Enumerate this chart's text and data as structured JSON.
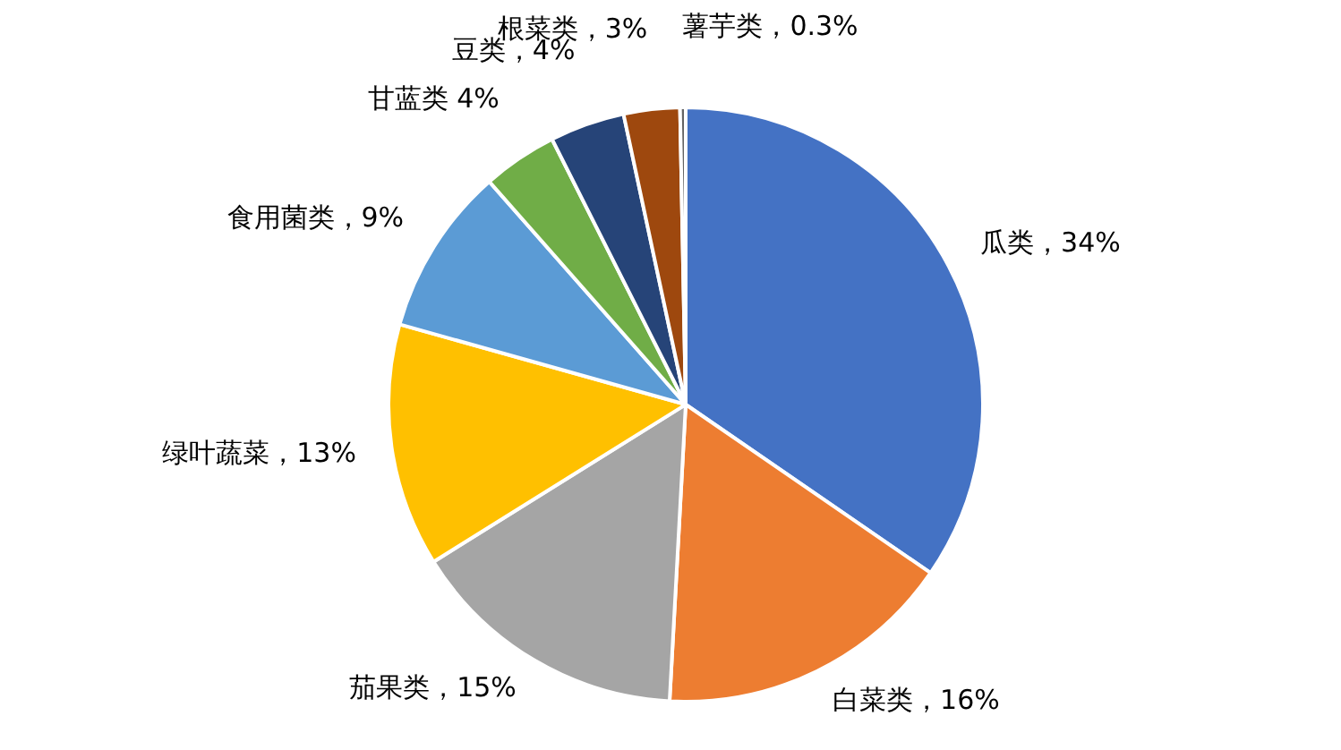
{
  "chart_data": {
    "type": "pie",
    "categories": [
      "瓜类",
      "白菜类",
      "茄果类",
      "绿叶蔬菜",
      "食用菌类",
      "甘蓝类",
      "豆类",
      "根菜类",
      "薯芋类"
    ],
    "values": [
      34,
      16,
      15,
      13,
      9,
      4,
      4,
      3,
      0.3
    ],
    "value_labels": [
      "，34%",
      "，16%",
      "，15%",
      "，13%",
      "，9%",
      " 4%",
      "，4%",
      "，3%",
      "，0.3%"
    ],
    "colors": [
      "#4472c4",
      "#ed7d31",
      "#a5a5a5",
      "#ffc000",
      "#5b9bd5",
      "#70ad47",
      "#264478",
      "#9e480e",
      "#636363"
    ]
  }
}
